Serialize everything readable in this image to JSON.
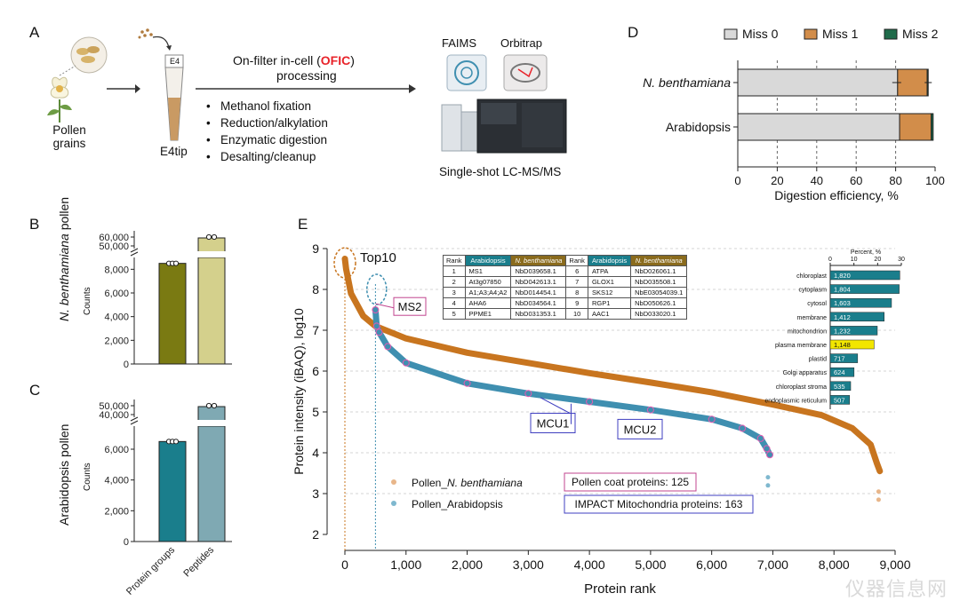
{
  "panel_a": {
    "letter": "A",
    "pollen_label_1": "Pollen",
    "pollen_label_2": "grains",
    "tip_tag": "E4",
    "tip_label": "E4tip",
    "title_pre": "On-filter in-cell (",
    "title_ofic": "OFIC",
    "title_post": ")",
    "title_line2": "processing",
    "steps": [
      "Methanol fixation",
      "Reduction/alkylation",
      "Enzymatic digestion",
      "Desalting/cleanup"
    ],
    "faims": "FAIMS",
    "orbitrap": "Orbitrap",
    "instrument_label": "Single-shot LC-MS/MS",
    "ofic_color": "#e8232a"
  },
  "panel_b": {
    "letter": "B",
    "ylabel_italic": "N. benthamiana",
    "ylabel_rest": " pollen",
    "counts_label": "Counts"
  },
  "panel_c": {
    "letter": "C",
    "ylabel": "Arabidopsis pollen",
    "counts_label": "Counts",
    "xlabels": [
      "Protein groups",
      "Peptides"
    ]
  },
  "panel_d": {
    "letter": "D"
  },
  "panel_e": {
    "letter": "E",
    "top10": "Top10",
    "ms2": "MS2",
    "mcu1": "MCU1",
    "mcu2": "MCU2",
    "legend_nb_prefix": "Pollen_",
    "legend_nb_italic": "N. benthamiana",
    "legend_at": "Pollen_Arabidopsis",
    "box_pollen_coat": "Pollen coat proteins: 125",
    "box_impact": "IMPACT Mitochondria proteins: 163",
    "table": {
      "headers": [
        "Rank",
        "Arabidopsis",
        "N. benthamiana",
        "Rank",
        "Arabidopsis",
        "N. benthamiana"
      ],
      "rows": [
        [
          "1",
          "MS1",
          "NbD039658.1",
          "6",
          "ATPA",
          "NbD026061.1"
        ],
        [
          "2",
          "At3g07850",
          "NbD042613.1",
          "7",
          "GLOX1",
          "NbD035508.1"
        ],
        [
          "3",
          "A1;A3;A4;A2",
          "NbD014454.1",
          "8",
          "SKS12",
          "NbE03054039.1"
        ],
        [
          "4",
          "AHA6",
          "NbD034564.1",
          "9",
          "RGP1",
          "NbD050626.1"
        ],
        [
          "5",
          "PPME1",
          "NbD031353.1",
          "10",
          "AAC1",
          "NbD033020.1"
        ]
      ]
    },
    "colors": {
      "nb": "#c8751f",
      "at": "#3f8fb0",
      "header_at": "#1a7e8c",
      "header_nb": "#8a6b1d"
    }
  },
  "chart_data": [
    {
      "id": "B",
      "type": "bar",
      "ylabel": "Counts",
      "categories": [
        "Protein groups",
        "Peptides"
      ],
      "values": [
        8500,
        57000
      ],
      "colors": [
        "#7a7a12",
        "#d4d08c"
      ],
      "axis_break": [
        9000,
        45000
      ],
      "yticks_lower": [
        "0",
        "2,000",
        "4,000",
        "6,000",
        "8,000"
      ],
      "yticks_upper": [
        "50,000",
        "60,000"
      ]
    },
    {
      "id": "C",
      "type": "bar",
      "ylabel": "Counts",
      "categories": [
        "Protein groups",
        "Peptides"
      ],
      "values": [
        6500,
        47000
      ],
      "colors": [
        "#1a7e8c",
        "#7fa9b3"
      ],
      "axis_break": [
        7500,
        35000
      ],
      "yticks_lower": [
        "0",
        "2,000",
        "4,000",
        "6,000"
      ],
      "yticks_upper": [
        "40,000",
        "50,000"
      ]
    },
    {
      "id": "D",
      "type": "bar",
      "orientation": "horizontal-stacked",
      "xlabel": "Digestion efficiency, %",
      "xlim": [
        0,
        100
      ],
      "xticks": [
        "0",
        "20",
        "40",
        "60",
        "80",
        "100"
      ],
      "categories": [
        "N. benthamiana",
        "Arabidopsis"
      ],
      "series": [
        {
          "name": "Miss 0",
          "values": [
            81,
            82
          ],
          "color": "#d9d9d9"
        },
        {
          "name": "Miss 1",
          "values": [
            15,
            16
          ],
          "color": "#d28d4a"
        },
        {
          "name": "Miss 2",
          "values": [
            0.5,
            1
          ],
          "color": "#1f6b4a"
        }
      ]
    },
    {
      "id": "E-main",
      "type": "scatter",
      "xlabel": "Protein rank",
      "ylabel": "Protein intensity (iBAQ), log10",
      "xlim": [
        0,
        9000
      ],
      "ylim": [
        2,
        9
      ],
      "xticks": [
        "0",
        "1,000",
        "2,000",
        "3,000",
        "4,000",
        "5,000",
        "6,000",
        "7,000",
        "8,000",
        "9,000"
      ],
      "yticks": [
        "2",
        "3",
        "4",
        "5",
        "6",
        "7",
        "8",
        "9"
      ],
      "series": [
        {
          "name": "Pollen_N. benthamiana",
          "x": [
            0,
            20,
            100,
            300,
            500,
            1000,
            2000,
            3000,
            4000,
            5000,
            6000,
            7000,
            7800,
            8300,
            8600,
            8700,
            8750
          ],
          "y": [
            8.75,
            8.5,
            7.9,
            7.35,
            7.1,
            6.8,
            6.45,
            6.2,
            5.95,
            5.72,
            5.48,
            5.18,
            4.92,
            4.6,
            4.2,
            3.75,
            3.55
          ]
        },
        {
          "name": "Pollen_Arabidopsis",
          "x": [
            500,
            520,
            560,
            700,
            1000,
            2000,
            3000,
            4000,
            5000,
            6000,
            6500,
            6800,
            6900,
            6950
          ],
          "y": [
            7.5,
            7.1,
            6.95,
            6.6,
            6.2,
            5.7,
            5.45,
            5.25,
            5.05,
            4.82,
            4.6,
            4.35,
            4.1,
            3.95
          ]
        }
      ]
    },
    {
      "id": "E-inset",
      "type": "bar",
      "orientation": "horizontal",
      "xlabel": "Percent, %",
      "xlim": [
        0,
        30
      ],
      "xticks": [
        "0",
        "10",
        "20",
        "30"
      ],
      "categories": [
        "chloroplast",
        "cytoplasm",
        "cytosol",
        "membrane",
        "mitochondrion",
        "plasma membrane",
        "plastid",
        "Golgi apparatus",
        "chloroplast stroma",
        "endoplasmic reticulum"
      ],
      "values": [
        1820,
        1804,
        1603,
        1412,
        1232,
        1148,
        717,
        624,
        535,
        507
      ],
      "labels": [
        "1,820",
        "1,804",
        "1,603",
        "1,412",
        "1,232",
        "1,148",
        "717",
        "624",
        "535",
        "507"
      ],
      "bar_color": "#1a7e8c",
      "highlight_index": 5,
      "highlight_color": "#f2e600"
    }
  ],
  "watermark": "仪器信息网"
}
